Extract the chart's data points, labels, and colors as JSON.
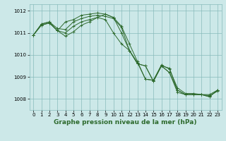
{
  "background_color": "#cce8e8",
  "grid_color": "#88bbbb",
  "line_color": "#2d6a2d",
  "marker_color": "#2d6a2d",
  "xlabel": "Graphe pression niveau de la mer (hPa)",
  "xlabel_fontsize": 6.5,
  "tick_fontsize": 5.0,
  "ylim": [
    1007.5,
    1012.3
  ],
  "xlim": [
    -0.5,
    23.5
  ],
  "yticks": [
    1008,
    1009,
    1010,
    1011,
    1012
  ],
  "xticks": [
    0,
    1,
    2,
    3,
    4,
    5,
    6,
    7,
    8,
    9,
    10,
    11,
    12,
    13,
    14,
    15,
    16,
    17,
    18,
    19,
    20,
    21,
    22,
    23
  ],
  "series": [
    [
      1010.9,
      1011.4,
      1011.5,
      1011.1,
      1011.5,
      1011.6,
      1011.8,
      1011.85,
      1011.9,
      1011.85,
      1011.7,
      1011.3,
      1010.5,
      1009.7,
      1008.9,
      1008.85,
      1009.5,
      1009.4,
      1008.4,
      1008.2,
      1008.2,
      1008.2,
      1008.2,
      1008.4
    ],
    [
      1010.9,
      1011.4,
      1011.5,
      1011.2,
      1011.15,
      1011.5,
      1011.65,
      1011.75,
      1011.8,
      1011.75,
      1011.65,
      1011.25,
      1010.2,
      1009.65,
      1008.9,
      1008.85,
      1009.55,
      1009.35,
      1008.5,
      1008.25,
      1008.25,
      1008.2,
      1008.15,
      1008.35
    ],
    [
      1010.9,
      1011.35,
      1011.45,
      1011.1,
      1011.0,
      1011.3,
      1011.5,
      1011.6,
      1011.7,
      1011.6,
      1011.0,
      1010.5,
      1010.2,
      1009.6,
      1009.5,
      1008.8,
      1009.5,
      1009.2,
      1008.4,
      1008.2,
      1008.2,
      1008.2,
      1008.1,
      1008.4
    ],
    [
      1010.9,
      1011.35,
      1011.45,
      1011.1,
      1010.85,
      1011.05,
      1011.35,
      1011.5,
      1011.7,
      1011.85,
      1011.7,
      1011.0,
      1010.2,
      1009.6,
      1009.5,
      1008.8,
      1009.5,
      1009.2,
      1008.3,
      1008.2,
      1008.2,
      1008.2,
      1008.1,
      1008.4
    ]
  ]
}
